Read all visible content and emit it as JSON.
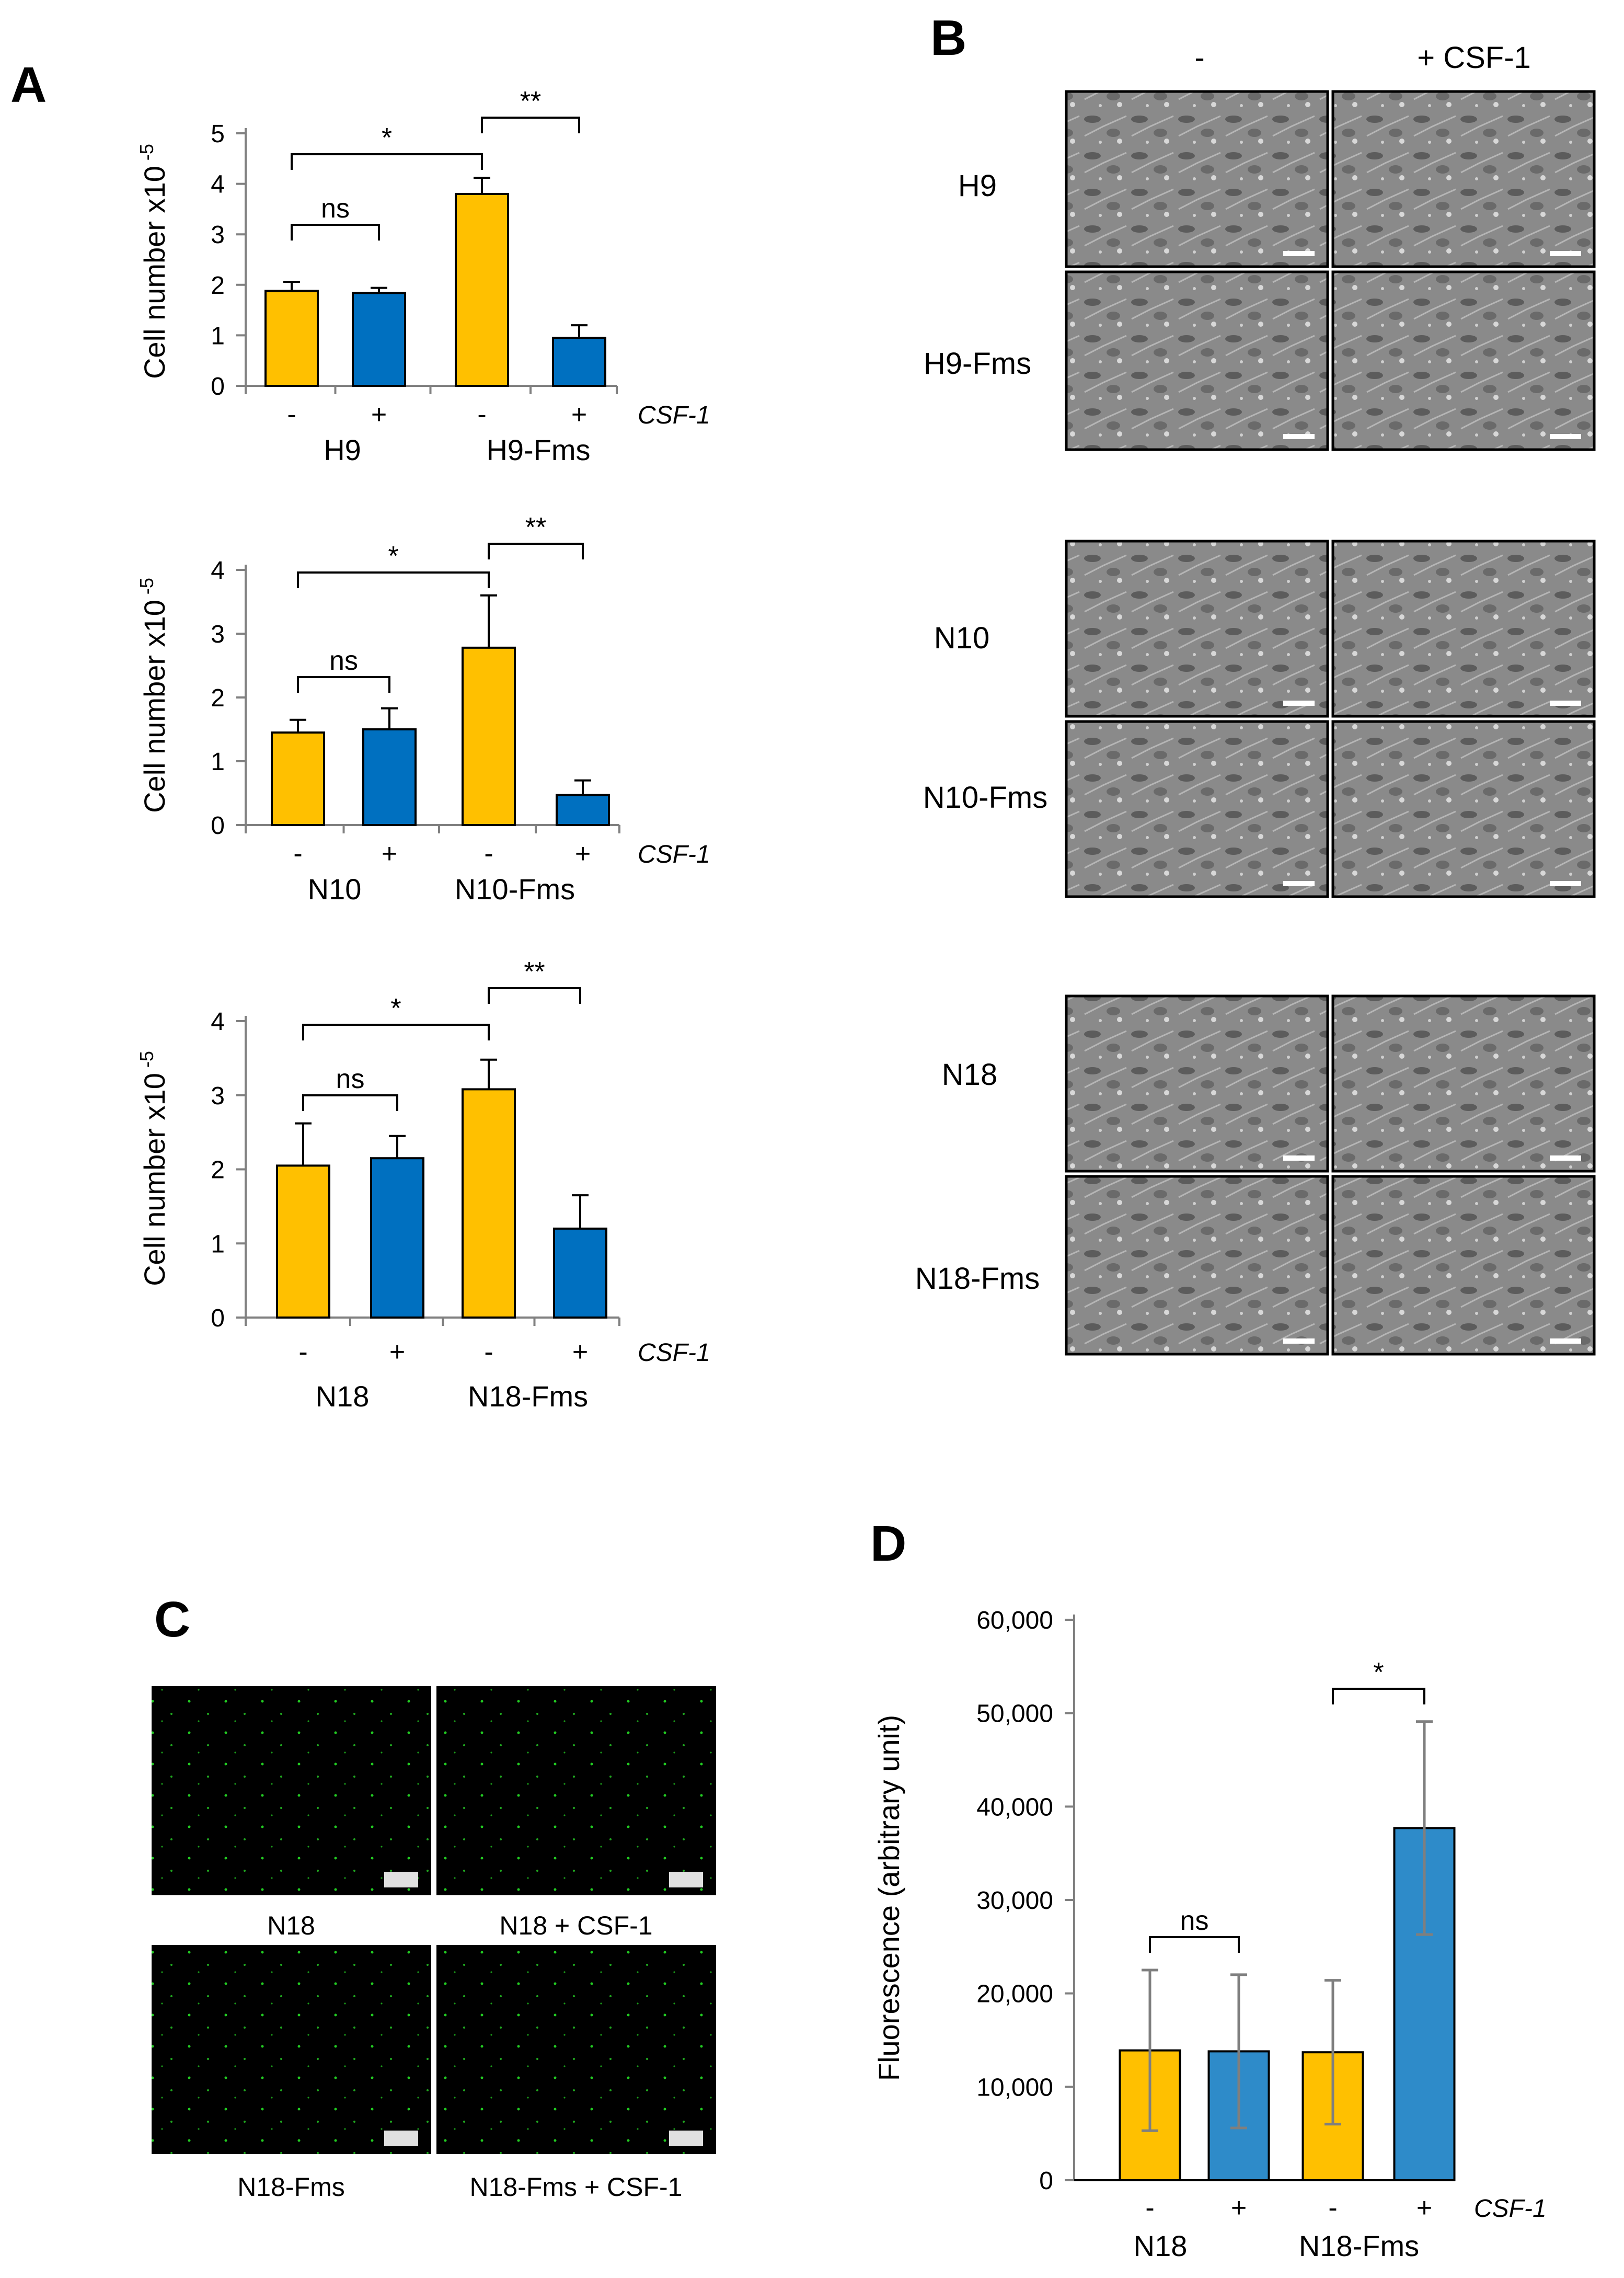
{
  "panel_letters": {
    "a": "A",
    "b": "B",
    "c": "C",
    "d": "D"
  },
  "colors": {
    "minus_bar": "#FFC000",
    "plus_bar": "#0070C0",
    "plus_bar_d": "#2E8BC9",
    "error_d": "#7F7F7F",
    "axis": "#808080",
    "micro_bg": "#888888",
    "fluor_bg": "#000000",
    "fluor_cell": "#22cc22"
  },
  "chart_data": [
    {
      "type": "bar",
      "panel": "A",
      "ylabel": "Cell number x10",
      "ylabel_exp": "-5",
      "ylim": [
        0,
        5
      ],
      "yticks": [
        "0",
        "1",
        "2",
        "3",
        "4",
        "5"
      ],
      "categories": [
        "-",
        "+",
        "-",
        "+"
      ],
      "groups": [
        "H9",
        "H9-Fms"
      ],
      "factor_label": "CSF-1",
      "values": [
        1.88,
        1.84,
        3.8,
        0.95
      ],
      "errors": [
        0.18,
        0.1,
        0.32,
        0.25
      ],
      "significance": [
        {
          "from": 0,
          "to": 1,
          "label": "ns"
        },
        {
          "from": 0,
          "to": 2,
          "label": "*"
        },
        {
          "from": 2,
          "to": 3,
          "label": "**"
        }
      ]
    },
    {
      "type": "bar",
      "panel": "A",
      "ylabel": "Cell number x10",
      "ylabel_exp": "-5",
      "ylim": [
        0,
        4
      ],
      "yticks": [
        "0",
        "1",
        "2",
        "3",
        "4"
      ],
      "categories": [
        "-",
        "+",
        "-",
        "+"
      ],
      "groups": [
        "N10",
        "N10-Fms"
      ],
      "factor_label": "CSF-1",
      "values": [
        1.45,
        1.5,
        2.78,
        0.47
      ],
      "errors": [
        0.2,
        0.33,
        0.82,
        0.23
      ],
      "significance": [
        {
          "from": 0,
          "to": 1,
          "label": "ns"
        },
        {
          "from": 0,
          "to": 2,
          "label": "*"
        },
        {
          "from": 2,
          "to": 3,
          "label": "**"
        }
      ]
    },
    {
      "type": "bar",
      "panel": "A",
      "ylabel": "Cell number x10",
      "ylabel_exp": "-5",
      "ylim": [
        0,
        4
      ],
      "yticks": [
        "0",
        "1",
        "2",
        "3",
        "4"
      ],
      "categories": [
        "-",
        "+",
        "-",
        "+"
      ],
      "groups": [
        "N18",
        "N18-Fms"
      ],
      "factor_label": "CSF-1",
      "values": [
        2.05,
        2.15,
        3.08,
        1.2
      ],
      "errors": [
        0.57,
        0.3,
        0.4,
        0.45
      ],
      "significance": [
        {
          "from": 0,
          "to": 1,
          "label": "ns"
        },
        {
          "from": 0,
          "to": 2,
          "label": "*"
        },
        {
          "from": 2,
          "to": 3,
          "label": "**"
        }
      ]
    },
    {
      "type": "bar",
      "panel": "D",
      "ylabel": "Fluorescence (arbitrary unit)",
      "ylim": [
        0,
        60000
      ],
      "yticks": [
        "0",
        "10,000",
        "20,000",
        "30,000",
        "40,000",
        "50,000",
        "60,000"
      ],
      "categories": [
        "-",
        "+",
        "-",
        "+"
      ],
      "groups": [
        "N18",
        "N18-Fms"
      ],
      "factor_label": "CSF-1",
      "values": [
        13900,
        13800,
        13700,
        37700
      ],
      "errors": [
        8600,
        8200,
        7700,
        11400
      ],
      "significance": [
        {
          "from": 0,
          "to": 1,
          "label": "ns"
        },
        {
          "from": 2,
          "to": 3,
          "label": "*"
        }
      ]
    }
  ],
  "panel_b": {
    "col_headers": [
      "-",
      "+ CSF-1"
    ],
    "rows": [
      "H9",
      "H9-Fms",
      "N10",
      "N10-Fms",
      "N18",
      "N18-Fms"
    ]
  },
  "panel_c": {
    "captions": [
      "N18",
      "N18 + CSF-1",
      "N18-Fms",
      "N18-Fms + CSF-1"
    ]
  }
}
